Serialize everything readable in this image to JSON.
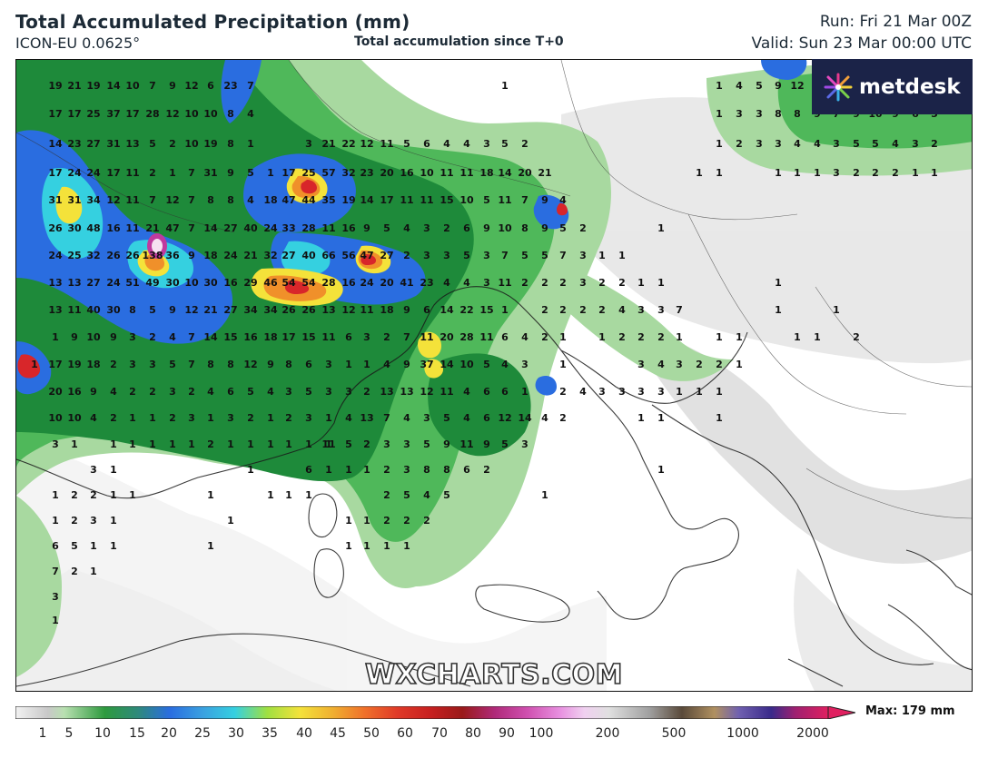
{
  "header": {
    "title": "Total Accumulated Precipitation (mm)",
    "model": "ICON-EU 0.0625°",
    "subtitle": "Total accumulation since T+0",
    "run": "Run: Fri 21 Mar 00Z",
    "valid": "Valid: Sun 23 Mar 00:00 UTC"
  },
  "logo": {
    "text": "metdesk",
    "icon": "metdesk-burst-icon"
  },
  "watermark": "WXCHARTS.COM",
  "legend": {
    "ticks": [
      "1",
      "5",
      "10",
      "15",
      "20",
      "25",
      "30",
      "35",
      "40",
      "45",
      "50",
      "60",
      "70",
      "80",
      "90",
      "100",
      "200",
      "500",
      "1000",
      "2000"
    ],
    "max_label": "Max: 179 mm"
  },
  "colors": {
    "green_light": "#a8d9a0",
    "green_mid": "#4fb85a",
    "green_dark": "#1e8a3a",
    "blue": "#2a6de0",
    "cyan": "#35d0e0",
    "yellow": "#f4e23a",
    "orange": "#f0902a",
    "red": "#d8262a",
    "grey_light": "#d9d9d9",
    "logo_bg": "#1b2348"
  },
  "map_values": [
    "19",
    "21",
    "19",
    "14",
    "10",
    "7",
    "9",
    "12",
    "6",
    "23",
    "7",
    "1",
    "1",
    "4",
    "5",
    "9",
    "12",
    "17",
    "17",
    "25",
    "37",
    "17",
    "28",
    "12",
    "10",
    "10",
    "8",
    "4",
    "1",
    "3",
    "3",
    "8",
    "8",
    "9",
    "7",
    "9",
    "10",
    "9",
    "6",
    "5",
    "14",
    "23",
    "27",
    "31",
    "13",
    "5",
    "2",
    "10",
    "19",
    "8",
    "1",
    "3",
    "21",
    "22",
    "12",
    "11",
    "5",
    "6",
    "4",
    "4",
    "3",
    "5",
    "2",
    "1",
    "2",
    "3",
    "3",
    "4",
    "4",
    "3",
    "5",
    "5",
    "4",
    "3",
    "2",
    "17",
    "24",
    "24",
    "17",
    "11",
    "2",
    "1",
    "7",
    "31",
    "9",
    "5",
    "1",
    "17",
    "25",
    "57",
    "32",
    "23",
    "20",
    "16",
    "10",
    "11",
    "11",
    "18",
    "14",
    "20",
    "21",
    "1",
    "1",
    "1",
    "1",
    "1",
    "3",
    "2",
    "2",
    "2",
    "1",
    "1",
    "31",
    "31",
    "34",
    "12",
    "11",
    "7",
    "12",
    "7",
    "8",
    "8",
    "4",
    "18",
    "47",
    "44",
    "35",
    "19",
    "14",
    "17",
    "11",
    "11",
    "15",
    "10",
    "5",
    "11",
    "7",
    "9",
    "4",
    "26",
    "30",
    "48",
    "16",
    "11",
    "21",
    "47",
    "7",
    "14",
    "27",
    "40",
    "24",
    "33",
    "28",
    "11",
    "16",
    "9",
    "5",
    "4",
    "3",
    "2",
    "6",
    "9",
    "10",
    "8",
    "9",
    "5",
    "2",
    "1",
    "24",
    "25",
    "32",
    "26",
    "26",
    "138",
    "36",
    "9",
    "18",
    "24",
    "21",
    "32",
    "27",
    "40",
    "66",
    "56",
    "47",
    "27",
    "2",
    "3",
    "3",
    "5",
    "3",
    "7",
    "5",
    "5",
    "7",
    "3",
    "1",
    "1",
    "13",
    "13",
    "27",
    "24",
    "51",
    "49",
    "30",
    "10",
    "30",
    "16",
    "29",
    "46",
    "54",
    "54",
    "28",
    "16",
    "24",
    "20",
    "41",
    "23",
    "4",
    "4",
    "3",
    "11",
    "2",
    "2",
    "2",
    "3",
    "2",
    "2",
    "1",
    "1",
    "1",
    "13",
    "11",
    "40",
    "30",
    "8",
    "5",
    "9",
    "12",
    "21",
    "27",
    "34",
    "34",
    "26",
    "26",
    "13",
    "12",
    "11",
    "18",
    "9",
    "6",
    "14",
    "22",
    "15",
    "1",
    "2",
    "2",
    "2",
    "2",
    "4",
    "3",
    "3",
    "7",
    "1",
    "1",
    "1",
    "9",
    "10",
    "9",
    "3",
    "2",
    "4",
    "7",
    "14",
    "15",
    "16",
    "18",
    "17",
    "15",
    "11",
    "6",
    "3",
    "2",
    "7",
    "11",
    "20",
    "28",
    "11",
    "6",
    "4",
    "2",
    "1",
    "1",
    "2",
    "2",
    "2",
    "1",
    "1",
    "1",
    "1",
    "1",
    "2",
    "1",
    "17",
    "19",
    "18",
    "2",
    "3",
    "3",
    "5",
    "7",
    "8",
    "8",
    "12",
    "9",
    "8",
    "6",
    "3",
    "1",
    "1",
    "4",
    "9",
    "37",
    "14",
    "10",
    "5",
    "4",
    "3",
    "1",
    "3",
    "4",
    "3",
    "2",
    "2",
    "1",
    "20",
    "16",
    "9",
    "4",
    "2",
    "2",
    "3",
    "2",
    "4",
    "6",
    "5",
    "4",
    "3",
    "5",
    "3",
    "3",
    "2",
    "13",
    "13",
    "12",
    "11",
    "4",
    "6",
    "6",
    "1",
    "2",
    "4",
    "3",
    "3",
    "3",
    "3",
    "1",
    "1",
    "1",
    "10",
    "10",
    "4",
    "2",
    "1",
    "1",
    "2",
    "3",
    "1",
    "3",
    "2",
    "1",
    "2",
    "3",
    "1",
    "4",
    "13",
    "7",
    "4",
    "3",
    "5",
    "4",
    "6",
    "12",
    "14",
    "4",
    "2",
    "1",
    "1",
    "1",
    "3",
    "1",
    "1",
    "1",
    "1",
    "1",
    "1",
    "2",
    "1",
    "1",
    "1",
    "1",
    "1",
    "1",
    "11",
    "5",
    "2",
    "3",
    "3",
    "5",
    "9",
    "11",
    "9",
    "5",
    "3",
    "3",
    "1",
    "1",
    "6",
    "1",
    "1",
    "1",
    "2",
    "3",
    "8",
    "8",
    "6",
    "2",
    "1",
    "1",
    "2",
    "2",
    "1",
    "1",
    "1",
    "1",
    "1",
    "1",
    "2",
    "5",
    "4",
    "5",
    "1",
    "1",
    "2",
    "3",
    "1",
    "1",
    "1",
    "1",
    "2",
    "2",
    "2",
    "6",
    "5",
    "1",
    "1",
    "1",
    "1",
    "1",
    "1",
    "1",
    "7",
    "2",
    "1",
    "3",
    "1"
  ]
}
